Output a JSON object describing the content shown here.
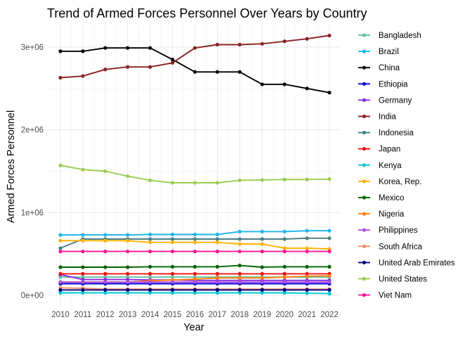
{
  "chart_data": {
    "type": "line",
    "title": "Trend of Armed Forces Personnel Over Years by Country",
    "xlabel": "Year",
    "ylabel": "Armed Forces Personnel",
    "x": [
      2010,
      2011,
      2012,
      2013,
      2014,
      2015,
      2016,
      2017,
      2018,
      2019,
      2020,
      2021,
      2022
    ],
    "xlim": [
      2010,
      2022
    ],
    "ylim": [
      0,
      3250000
    ],
    "y_ticks": [
      0,
      1000000,
      2000000,
      3000000
    ],
    "y_tick_labels": [
      "0e+00",
      "1e+06",
      "2e+06",
      "3e+06"
    ],
    "grid": true,
    "legend_position": "right",
    "series": [
      {
        "name": "Bangladesh",
        "color": "#66c2a5",
        "values": [
          220000,
          220000,
          220000,
          220000,
          220000,
          220000,
          220000,
          220000,
          220000,
          220000,
          220000,
          220000,
          220000
        ]
      },
      {
        "name": "Brazil",
        "color": "#1eb4f0",
        "values": [
          730000,
          730000,
          730000,
          730000,
          735000,
          735000,
          735000,
          735000,
          770000,
          770000,
          770000,
          780000,
          780000
        ]
      },
      {
        "name": "China",
        "color": "#000000",
        "values": [
          2950000,
          2950000,
          2990000,
          2990000,
          2990000,
          2850000,
          2700000,
          2700000,
          2700000,
          2550000,
          2550000,
          2500000,
          2450000
        ]
      },
      {
        "name": "Ethiopia",
        "color": "#0000dd",
        "values": [
          140000,
          140000,
          140000,
          140000,
          140000,
          140000,
          140000,
          140000,
          140000,
          140000,
          140000,
          140000,
          140000
        ]
      },
      {
        "name": "Germany",
        "color": "#8a2be2",
        "values": [
          250000,
          190000,
          190000,
          190000,
          185000,
          185000,
          180000,
          180000,
          180000,
          180000,
          180000,
          180000,
          180000
        ]
      },
      {
        "name": "India",
        "color": "#8b2323",
        "values": [
          2630000,
          2650000,
          2730000,
          2760000,
          2760000,
          2810000,
          2990000,
          3030000,
          3030000,
          3040000,
          3070000,
          3100000,
          3140000
        ]
      },
      {
        "name": "Indonesia",
        "color": "#4a7f86",
        "values": [
          570000,
          680000,
          680000,
          680000,
          680000,
          680000,
          680000,
          680000,
          680000,
          680000,
          680000,
          690000,
          690000
        ]
      },
      {
        "name": "Japan",
        "color": "#ee1111",
        "values": [
          260000,
          260000,
          260000,
          260000,
          260000,
          260000,
          260000,
          260000,
          260000,
          260000,
          260000,
          260000,
          260000
        ]
      },
      {
        "name": "Kenya",
        "color": "#00c8d2",
        "values": [
          30000,
          30000,
          30000,
          30000,
          30000,
          30000,
          30000,
          30000,
          30000,
          30000,
          30000,
          25000,
          20000
        ]
      },
      {
        "name": "Korea, Rep.",
        "color": "#ffb300",
        "values": [
          660000,
          660000,
          660000,
          660000,
          640000,
          640000,
          640000,
          640000,
          620000,
          620000,
          570000,
          570000,
          560000
        ]
      },
      {
        "name": "Mexico",
        "color": "#006400",
        "values": [
          340000,
          340000,
          340000,
          340000,
          345000,
          345000,
          345000,
          345000,
          360000,
          340000,
          345000,
          345000,
          345000
        ]
      },
      {
        "name": "Nigeria",
        "color": "#ff7f0e",
        "values": [
          160000,
          160000,
          160000,
          160000,
          175000,
          185000,
          195000,
          210000,
          210000,
          210000,
          220000,
          230000,
          235000
        ]
      },
      {
        "name": "Philippines",
        "color": "#b04fdc",
        "values": [
          160000,
          160000,
          160000,
          160000,
          160000,
          160000,
          160000,
          160000,
          160000,
          160000,
          160000,
          160000,
          160000
        ]
      },
      {
        "name": "South Africa",
        "color": "#f08a70",
        "values": [
          90000,
          85000,
          75000,
          75000,
          75000,
          75000,
          75000,
          75000,
          75000,
          75000,
          75000,
          75000,
          75000
        ]
      },
      {
        "name": "United Arab Emirates",
        "color": "#000080",
        "values": [
          65000,
          65000,
          65000,
          65000,
          65000,
          65000,
          65000,
          65000,
          65000,
          65000,
          65000,
          65000,
          65000
        ]
      },
      {
        "name": "United States",
        "color": "#9acd50",
        "values": [
          1570000,
          1520000,
          1500000,
          1440000,
          1390000,
          1360000,
          1360000,
          1360000,
          1390000,
          1395000,
          1400000,
          1400000,
          1405000
        ]
      },
      {
        "name": "Viet Nam",
        "color": "#ff1493",
        "values": [
          530000,
          530000,
          530000,
          530000,
          530000,
          530000,
          530000,
          530000,
          530000,
          530000,
          530000,
          530000,
          530000
        ]
      }
    ]
  }
}
